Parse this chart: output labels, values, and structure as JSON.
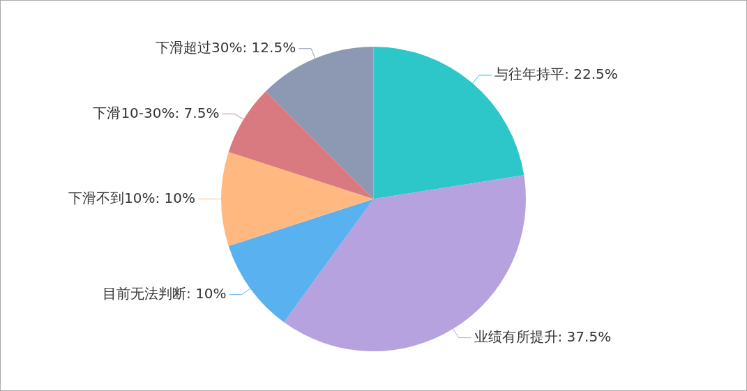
{
  "chart_data": {
    "type": "pie",
    "categories": [
      "与往年持平",
      "业绩有所提升",
      "目前无法判断",
      "下滑不到10%",
      "下滑10-30%",
      "下滑超过30%"
    ],
    "values": [
      22.5,
      37.5,
      10,
      10,
      7.5,
      12.5
    ],
    "value_labels": [
      "22.5%",
      "37.5%",
      "10%",
      "10%",
      "7.5%",
      "12.5%"
    ],
    "colors": [
      "#2ec7c9",
      "#b6a2de",
      "#5ab1ef",
      "#ffb980",
      "#d87a80",
      "#8d98b3"
    ],
    "legend": false
  }
}
